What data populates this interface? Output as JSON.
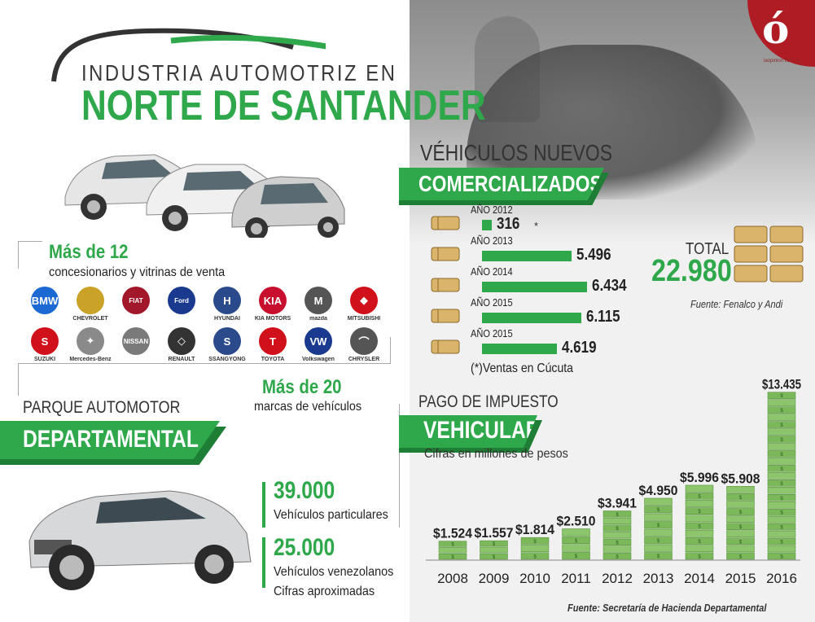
{
  "logo": {
    "letter": "ó",
    "url": "laopinion.com.co"
  },
  "title": {
    "line1": "INDUSTRIA AUTOMOTRIZ EN",
    "line2": "NORTE DE SANTANDER"
  },
  "dealers": {
    "heading": "Más de 12",
    "subtitle": "concesionarios y vitrinas de venta"
  },
  "brands": {
    "heading": "Más de 20",
    "subtitle": "marcas de vehículos",
    "row1": [
      {
        "name": "",
        "mark": "BMW",
        "color": "#1c69d4"
      },
      {
        "name": "CHEVROLET",
        "mark": "",
        "color": "#c9a227"
      },
      {
        "name": "",
        "mark": "FIAT",
        "color": "#a3172b"
      },
      {
        "name": "",
        "mark": "Ford",
        "color": "#1a3a8f"
      },
      {
        "name": "HYUNDAI",
        "mark": "H",
        "color": "#2b4a8b"
      },
      {
        "name": "KIA MOTORS",
        "mark": "KIA",
        "color": "#c8102e"
      },
      {
        "name": "mazda",
        "mark": "M",
        "color": "#555555"
      },
      {
        "name": "MITSUBISHI",
        "mark": "◆",
        "color": "#d0101b"
      }
    ],
    "row2": [
      {
        "name": "SUZUKI",
        "mark": "S",
        "color": "#d0101b"
      },
      {
        "name": "Mercedes-Benz",
        "mark": "✦",
        "color": "#8a8a8a"
      },
      {
        "name": "",
        "mark": "NISSAN",
        "color": "#7a7a7a"
      },
      {
        "name": "RENAULT",
        "mark": "◇",
        "color": "#333333"
      },
      {
        "name": "SSANGYONG",
        "mark": "S",
        "color": "#2b4a8b"
      },
      {
        "name": "TOYOTA",
        "mark": "T",
        "color": "#d0101b"
      },
      {
        "name": "Volkswagen",
        "mark": "VW",
        "color": "#1a3a8f"
      },
      {
        "name": "CHRYSLER",
        "mark": "⌒",
        "color": "#555555"
      }
    ]
  },
  "parque": {
    "title": "PARQUE AUTOMOTOR",
    "box": "DEPARTAMENTAL",
    "stat1_value": "39.000",
    "stat1_label": "Vehículos particulares",
    "stat2_value": "25.000",
    "stat2_label": "Vehículos venezolanos",
    "note": "Cifras aproximadas"
  },
  "sales": {
    "title": "VÉHICULOS NUEVOS",
    "box": "COMERCIALIZADOS",
    "total_label": "TOTAL",
    "total_value": "22.980",
    "source": "Fuente: Fenalco y Andi",
    "note": "(*)Ventas en Cúcuta",
    "asterisk": "*"
  },
  "tax": {
    "title": "PAGO DE IMPUESTO",
    "box": "VEHICULAR",
    "units": "Cifras en millones de pesos",
    "source": "Fuente: Secretaría de Hacienda Departamental"
  },
  "colors": {
    "green": "#2ea84a",
    "dark_green": "#1f7e35",
    "red": "#b01c24"
  },
  "chart_data": [
    {
      "type": "bar",
      "orientation": "horizontal",
      "title": "VÉHICULOS NUEVOS COMERCIALIZADOS",
      "categories": [
        "AÑO 2012",
        "AÑO 2013",
        "AÑO 2014",
        "AÑO 2015",
        "AÑO 2015"
      ],
      "values": [
        316,
        5496,
        6434,
        6115,
        4619
      ],
      "value_labels": [
        "316",
        "5.496",
        "6.434",
        "6.115",
        "4.619"
      ],
      "xlim": [
        0,
        7000
      ]
    },
    {
      "type": "bar",
      "title": "PAGO DE IMPUESTO VEHICULAR",
      "categories": [
        "2008",
        "2009",
        "2010",
        "2011",
        "2012",
        "2013",
        "2014",
        "2015",
        "2016"
      ],
      "values": [
        1524,
        1557,
        1814,
        2510,
        3941,
        4950,
        5996,
        5908,
        13435
      ],
      "value_labels": [
        "$1.524",
        "$1.557",
        "$1.814",
        "$2.510",
        "$3.941",
        "$4.950",
        "$5.996",
        "$5.908",
        "$13.435"
      ],
      "ylim": [
        0,
        14000
      ]
    }
  ]
}
